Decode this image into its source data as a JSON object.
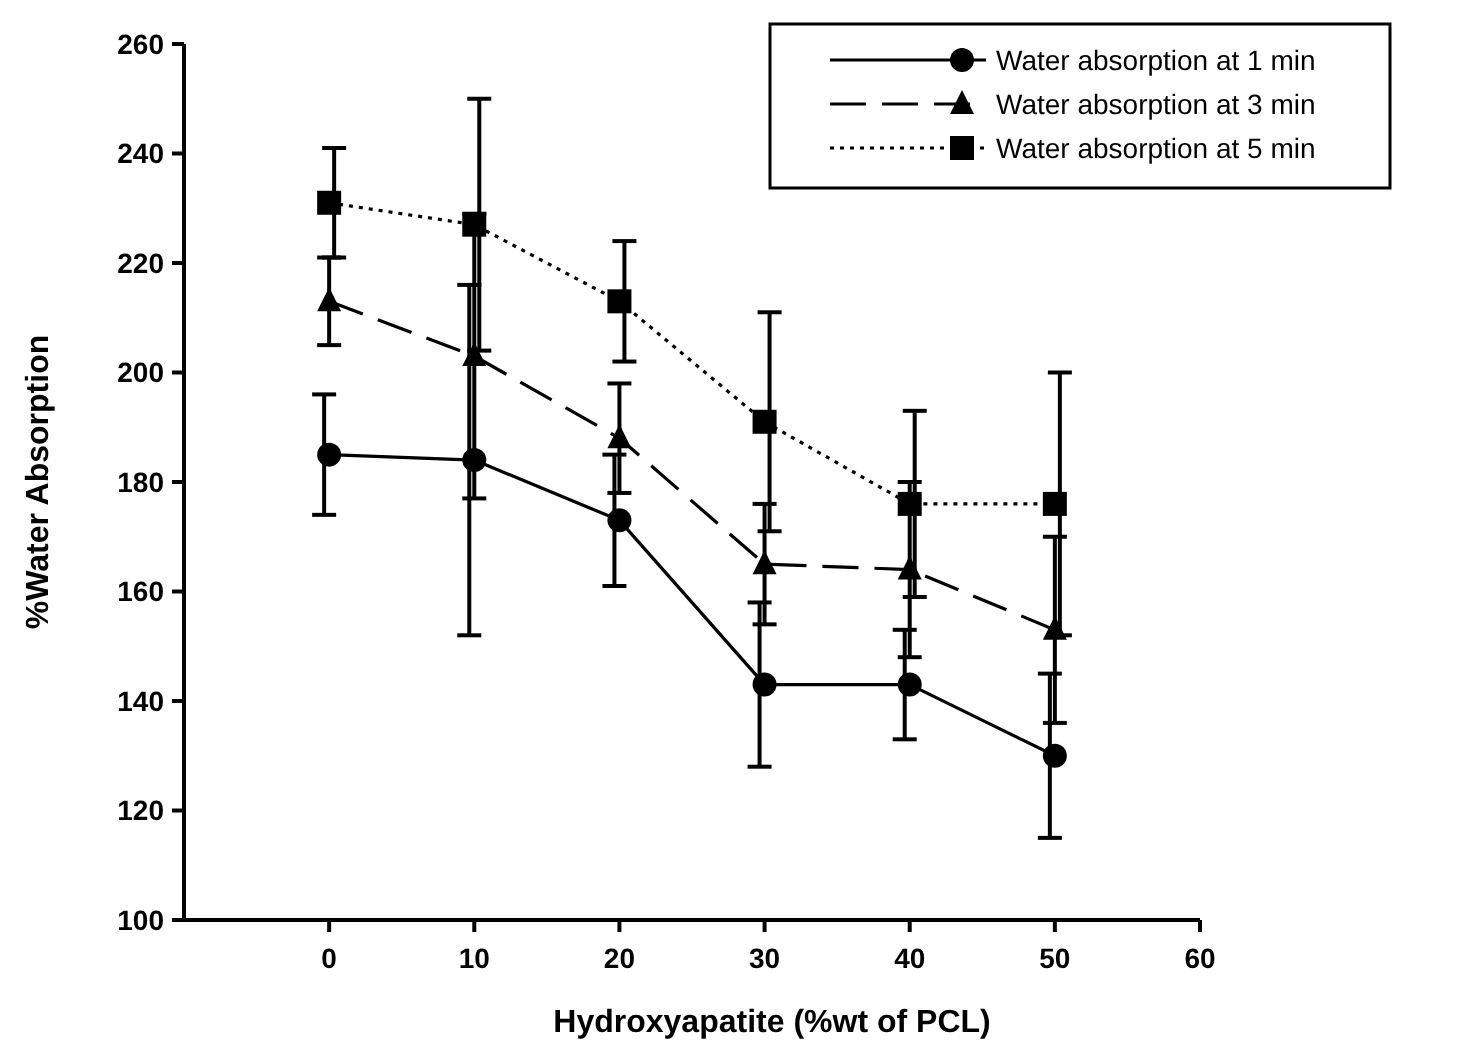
{
  "chart_data": {
    "type": "line",
    "xlabel": "Hydroxyapatite (%wt of PCL)",
    "ylabel": "%Water Absorption",
    "x": [
      0,
      10,
      20,
      30,
      40,
      50
    ],
    "xlim": [
      -10,
      60
    ],
    "xticks": [
      0,
      10,
      20,
      30,
      40,
      50,
      60
    ],
    "ylim": [
      100,
      260
    ],
    "yticks": [
      100,
      120,
      140,
      160,
      180,
      200,
      220,
      240,
      260
    ],
    "grid": false,
    "legend": "top right",
    "series": [
      {
        "name": "Water absorption at 1 min",
        "color": "#000000",
        "marker": "circle",
        "line_style": "solid",
        "values": [
          185,
          184,
          173,
          143,
          143,
          130
        ],
        "errors": [
          11,
          32,
          12,
          15,
          10,
          15
        ]
      },
      {
        "name": "Water absorption at 3 min",
        "color": "#000000",
        "marker": "triangle",
        "line_style": "dashed",
        "values": [
          213,
          203,
          188,
          165,
          164,
          153
        ],
        "errors": [
          8,
          26,
          10,
          11,
          16,
          17
        ]
      },
      {
        "name": "Water absorption at 5 min",
        "color": "#000000",
        "marker": "square",
        "line_style": "dotted",
        "values": [
          231,
          227,
          213,
          191,
          176,
          176
        ],
        "errors": [
          10,
          23,
          11,
          20,
          17,
          24
        ]
      }
    ]
  }
}
